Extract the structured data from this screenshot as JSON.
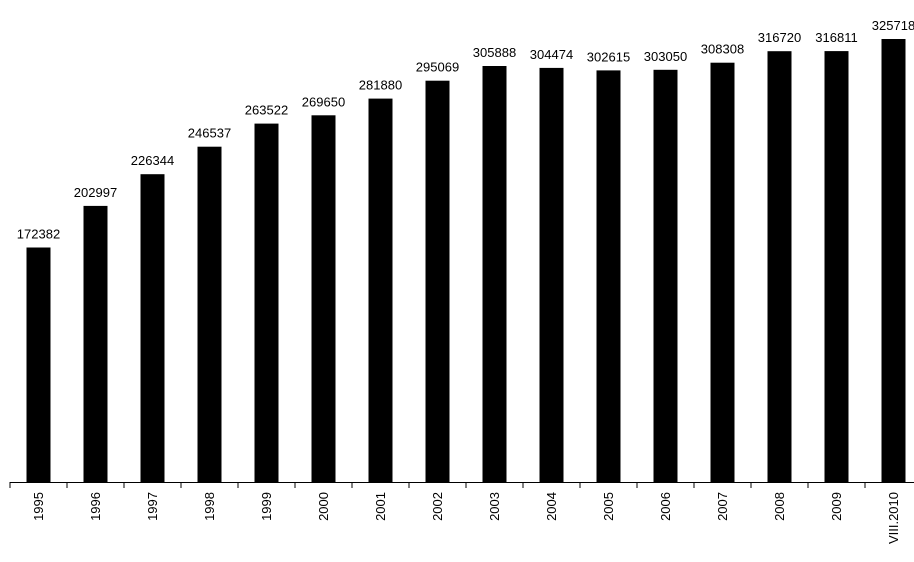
{
  "chart_data": {
    "type": "bar",
    "title": "",
    "xlabel": "",
    "ylabel": "",
    "categories": [
      "1995",
      "1996",
      "1997",
      "1998",
      "1999",
      "2000",
      "2001",
      "2002",
      "2003",
      "2004",
      "2005",
      "2006",
      "2007",
      "2008",
      "2009",
      "VIII.2010"
    ],
    "values": [
      172382,
      202997,
      226344,
      246537,
      263522,
      269650,
      281880,
      295069,
      305888,
      304474,
      302615,
      303050,
      308308,
      316720,
      316811,
      325718
    ],
    "data_labels": [
      "172382",
      "202997",
      "226344",
      "246537",
      "263522",
      "269650",
      "281880",
      "295069",
      "305888",
      "304474",
      "302615",
      "303050",
      "308308",
      "316720",
      "316811",
      "325718"
    ],
    "ylim": [
      0,
      340000
    ],
    "grid": false,
    "legend": "none",
    "bar_color": "#000000",
    "axis_color": "#000000"
  }
}
